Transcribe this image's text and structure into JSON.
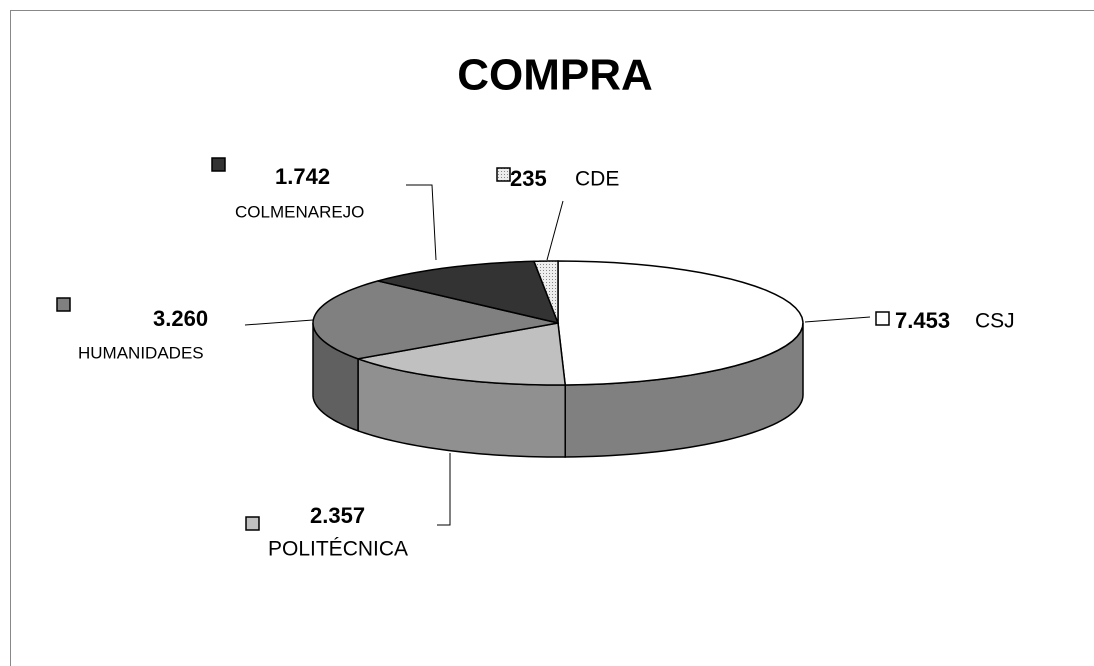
{
  "chart_data": {
    "type": "pie",
    "title": "COMPRA",
    "categories": [
      "CSJ",
      "POLITÉCNICA",
      "HUMANIDADES",
      "COLMENAREJO",
      "CDE"
    ],
    "values": [
      7453,
      2357,
      3260,
      1742,
      235
    ],
    "value_labels": [
      "7.453",
      "2.357",
      "3.260",
      "1.742",
      "235"
    ],
    "colors": [
      "#ffffff",
      "#c0c0c0",
      "#808080",
      "#333333",
      "#e4e4e4"
    ]
  }
}
